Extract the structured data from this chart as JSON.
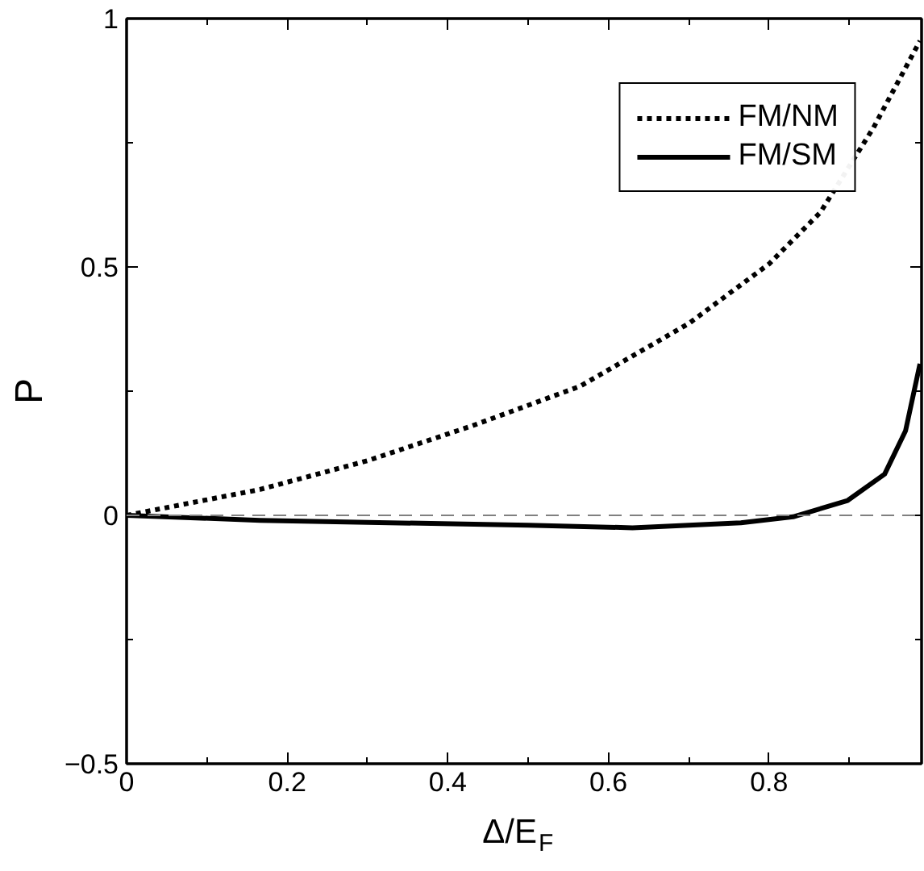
{
  "chart_data": {
    "type": "line",
    "xlabel": "Δ/E$_{F}$",
    "ylabel": "P",
    "xlim": [
      0,
      0.99
    ],
    "ylim": [
      -0.5,
      1
    ],
    "xticks": [
      0,
      {
        "value": 0.1,
        "label": null
      },
      0.2,
      {
        "value": 0.3,
        "label": null
      },
      0.4,
      {
        "value": 0.5,
        "label": null
      },
      0.6,
      {
        "value": 0.7,
        "label": null
      },
      0.8,
      {
        "value": 0.9,
        "label": null
      }
    ],
    "yticks": [
      {
        "value": -0.5,
        "label": "−0.5"
      },
      {
        "value": -0.25,
        "label": null
      },
      0,
      {
        "value": 0.25,
        "label": null
      },
      0.5,
      {
        "value": 0.75,
        "label": null
      },
      1
    ],
    "legend": "top right",
    "grid": false,
    "ref_lines": [
      {
        "axis": "y",
        "value": 0,
        "label": null,
        "color": "#808080",
        "line_style": "dashed"
      }
    ],
    "series": [
      {
        "name": "FM/NM",
        "color": "#000000",
        "line_style": "dotted",
        "x": [
          0,
          0.166,
          0.3,
          0.43,
          0.565,
          0.7,
          0.8,
          0.864,
          0.93,
          0.988
        ],
        "values": [
          0,
          0.052,
          0.11,
          0.18,
          0.26,
          0.386,
          0.506,
          0.61,
          0.78,
          0.955
        ]
      },
      {
        "name": "FM/SM",
        "color": "#000000",
        "line_style": "solid",
        "x": [
          0,
          0.166,
          0.5,
          0.63,
          0.765,
          0.83,
          0.898,
          0.944,
          0.97,
          0.98,
          0.988
        ],
        "values": [
          0,
          -0.01,
          -0.02,
          -0.025,
          -0.015,
          -0.003,
          0.03,
          0.083,
          0.17,
          0.245,
          0.305
        ]
      }
    ]
  }
}
